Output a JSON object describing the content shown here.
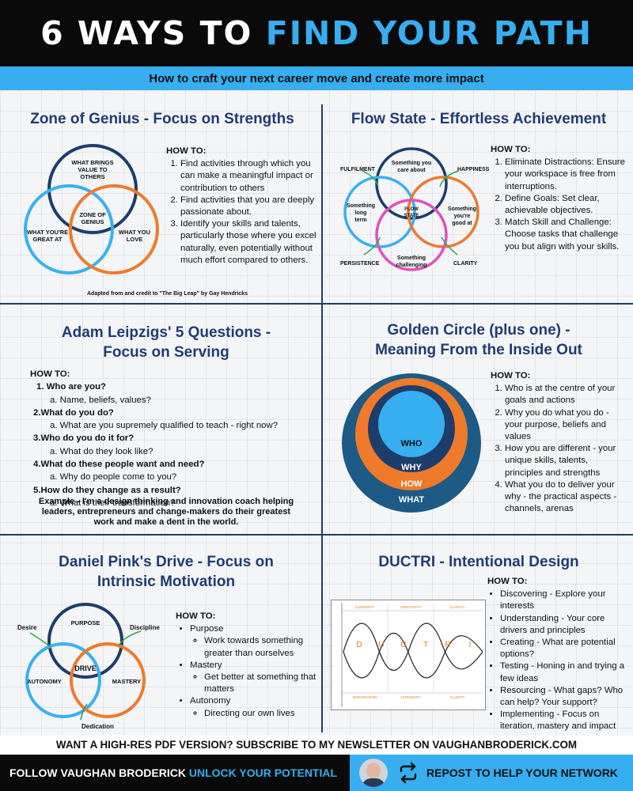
{
  "header": {
    "title_part1": "6 WAYS TO",
    "title_part2": "FIND YOUR PATH",
    "subtitle": "How to craft your next career move and create more impact"
  },
  "colors": {
    "accent": "#37aef0",
    "navy": "#1f3c74",
    "orange": "#ef7a2c",
    "pink": "#e34fc0",
    "dark": "#0a0a0a"
  },
  "zone": {
    "title": "Zone of Genius - Focus on Strengths",
    "circle_top": [
      "WHAT BRINGS",
      "VALUE TO",
      "OTHERS"
    ],
    "circle_left": [
      "WHAT YOU'RE",
      "GREAT AT"
    ],
    "circle_right": [
      "WHAT YOU",
      "LOVE"
    ],
    "center": [
      "ZONE OF",
      "GENIUS"
    ],
    "howto_label": "HOW TO:",
    "steps": [
      "Find activities through which you can make a meaningful impact or contribution to others",
      "Find activities that you are deeply passionate about.",
      "Identify your skills and talents, particularly those where you excel naturally, even potentially without much effort compared to others."
    ],
    "credit": "Adapted from and credit to \"The Big Leap\" by Gay Hendricks"
  },
  "flow": {
    "title": "Flow State - Effortless Achievement",
    "circle_top": [
      "Something you",
      "care about"
    ],
    "circle_left": [
      "Something",
      "long",
      "term"
    ],
    "circle_right": [
      "Something",
      "you're",
      "good at"
    ],
    "circle_bottom": [
      "Something",
      "challenging"
    ],
    "center": [
      "FLOW",
      "STATE"
    ],
    "tags": {
      "fulfilment": "FULFILMENT",
      "happiness": "HAPPINESS",
      "persistence": "PERSISTENCE",
      "clarity": "CLARITY"
    },
    "howto_label": "HOW TO:",
    "steps": [
      "Eliminate Distractions: Ensure your workspace is free from interruptions.",
      "Define Goals: Set clear, achievable objectives.",
      "Match Skill and Challenge: Choose tasks that challenge you but align with your skills."
    ]
  },
  "leipzig": {
    "title_line1": "Adam Leipzigs' 5 Questions -",
    "title_line2": "Focus on Serving",
    "howto_label": "HOW TO:",
    "questions": [
      {
        "n": "1.",
        "q": "Who are you?",
        "sub": "a. Name, beliefs, values?"
      },
      {
        "n": "2.",
        "q": "What do you do?",
        "sub": "a. What are you supremely qualified to teach - right now?"
      },
      {
        "n": "3.",
        "q": "Who do you do it for?",
        "sub": "a. What do they look like?"
      },
      {
        "n": "4.",
        "q": "What do these people want and need?",
        "sub": "a. Why do people come to you?"
      },
      {
        "n": "5.",
        "q": "How do they change as a result?",
        "sub": "a. What is their transformation?"
      }
    ],
    "example": "Example - I'm a design thinking and innovation coach helping leaders, entrepreneurs and change-makers do their greatest work and make a dent in the world."
  },
  "golden": {
    "title_line1": "Golden Circle (plus one) -",
    "title_line2": "Meaning From the Inside Out",
    "rings": {
      "who": "WHO",
      "why": "WHY",
      "how": "HOW",
      "what": "WHAT"
    },
    "howto_label": "HOW TO:",
    "steps": [
      "Who is at the centre of your goals and actions",
      "Why you do what you do - your purpose, beliefs and values",
      "How you are different - your unique skills, talents, principles and strengths",
      "What you do to deliver your why - the practical aspects - channels, arenas"
    ]
  },
  "pink": {
    "title_line1": "Daniel Pink's Drive - Focus on",
    "title_line2": "Intrinsic Motivation",
    "circle_top": "PURPOSE",
    "circle_left": "AUTONOMY",
    "circle_right": "MASTERY",
    "center": "DRIVE",
    "tags": {
      "desire": "Desire",
      "discipline": "Discipline",
      "dedication": "Dedication"
    },
    "howto_label": "HOW TO:",
    "items": [
      {
        "label": "Purpose",
        "sub": "Work towards something greater than ourselves"
      },
      {
        "label": "Mastery",
        "sub": "Get better at something that matters"
      },
      {
        "label": "Autonomy",
        "sub": "Directing our own lives"
      }
    ]
  },
  "ductri": {
    "title": "DUCTRI - Intentional Design",
    "howto_label": "HOW TO:",
    "letters": [
      "D",
      "U",
      "C",
      "T",
      "R",
      "I"
    ],
    "top_labels": [
      "CURIOSITY",
      "CREATIVITY",
      "CLARITY"
    ],
    "bottom_labels": [
      "INTEGRATION",
      "CURIOSITY",
      "CLARITY"
    ],
    "items": [
      "Discovering - Explore your interests",
      "Understanding - Your core drivers and principles",
      "Creating - What are potential options?",
      "Testing - Honing in and trying a few ideas",
      "Resourcing - What gaps? Who can help? Your support?",
      "Implementing - Focus on iteration, mastery and impact"
    ]
  },
  "cta": "WANT A HIGH-RES PDF VERSION? SUBSCRIBE TO MY NEWSLETTER ON VAUGHANBRODERICK.COM",
  "footer": {
    "follow": "FOLLOW VAUGHAN BRODERICK",
    "unlock": "UNLOCK YOUR POTENTIAL",
    "repost": "REPOST TO HELP YOUR NETWORK"
  }
}
